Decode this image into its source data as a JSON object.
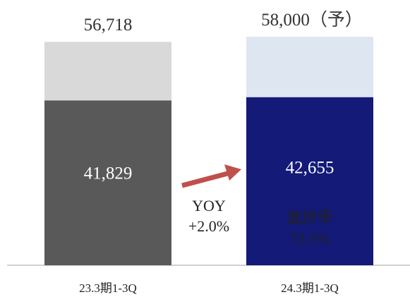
{
  "chart_data": {
    "type": "overlay_bar",
    "categories": [
      "23.3期1-3Q",
      "24.3期1-3Q"
    ],
    "series": [
      {
        "colors": [
          "#d9d9d9",
          "#dde6f1"
        ],
        "values": [
          56718,
          58000
        ],
        "value_labels": [
          "56,718",
          "58,000（予）"
        ]
      },
      {
        "colors": [
          "#595959",
          "#141a78"
        ],
        "values": [
          41829,
          42655
        ],
        "value_labels": [
          "41,829",
          "42,655"
        ]
      }
    ],
    "ylim": [
      0,
      60000
    ],
    "annotations": [
      {
        "lines": [
          "YOY",
          "+2.0%"
        ]
      },
      {
        "lines": [
          "進捗率",
          "73.5%"
        ]
      }
    ]
  }
}
